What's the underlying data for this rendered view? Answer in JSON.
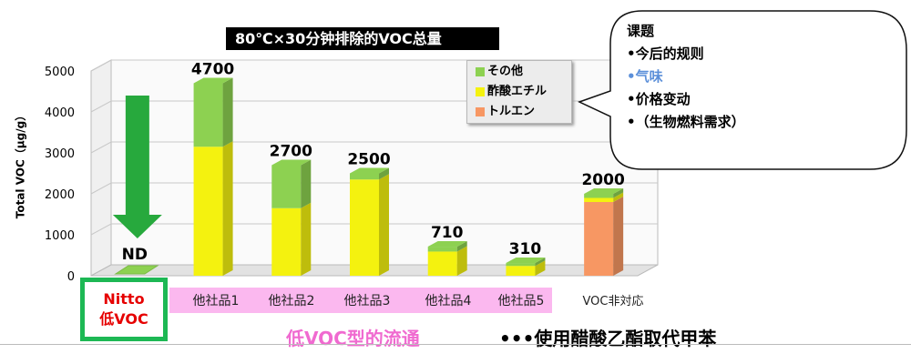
{
  "chart_data": {
    "type": "bar",
    "stacked": true,
    "title": "80℃×30分钟排除的VOC总量",
    "ylabel": "Total VOC（μg/g）",
    "ylim": [
      0,
      5000
    ],
    "yticks": [
      0,
      1000,
      2000,
      3000,
      4000,
      5000
    ],
    "grid": true,
    "legend_position": "top-right",
    "categories": [
      "Nitto\n低VOC",
      "他社品1",
      "他社品2",
      "他社品3",
      "他社品4",
      "他社品5",
      "VOC非対応"
    ],
    "totals_labels": [
      "ND",
      "4700",
      "2700",
      "2500",
      "710",
      "310",
      "2000"
    ],
    "series": [
      {
        "name": "トルエン",
        "color": "#f79763",
        "values": [
          0,
          0,
          0,
          0,
          0,
          0,
          1800
        ]
      },
      {
        "name": "酢酸エチル",
        "color": "#f4f20f",
        "values": [
          0,
          3150,
          1650,
          2350,
          590,
          240,
          100
        ]
      },
      {
        "name": "その他",
        "color": "#8dd151",
        "values": [
          0,
          1550,
          1050,
          150,
          120,
          70,
          100
        ]
      }
    ]
  },
  "legend": [
    {
      "label": "その他",
      "color": "#8dd151"
    },
    {
      "label": "酢酸エチル",
      "color": "#f4f20f"
    },
    {
      "label": "トルエン",
      "color": "#f79763"
    }
  ],
  "nitto_label_line1": "Nitto",
  "nitto_label_line2": "低VOC",
  "competitor_labels": [
    "他社品1",
    "他社品2",
    "他社品3",
    "他社品4",
    "他社品5"
  ],
  "voc_nonsupport_label": "VOC非対応",
  "flow_text": "低VOC型的流通",
  "bottom_note": "•••使用醋酸乙酯取代甲苯",
  "callout": {
    "heading": "课题",
    "items": [
      "•今后的规则",
      "•气味",
      "•价格变动",
      "•（生物燃料需求）"
    ]
  },
  "colors": {
    "nitto_border": "#1db854",
    "nitto_text": "#e60000",
    "pink_band": "#fbb8ef",
    "flow_text": "#f06ad0",
    "arrow_green": "#27a93d"
  }
}
